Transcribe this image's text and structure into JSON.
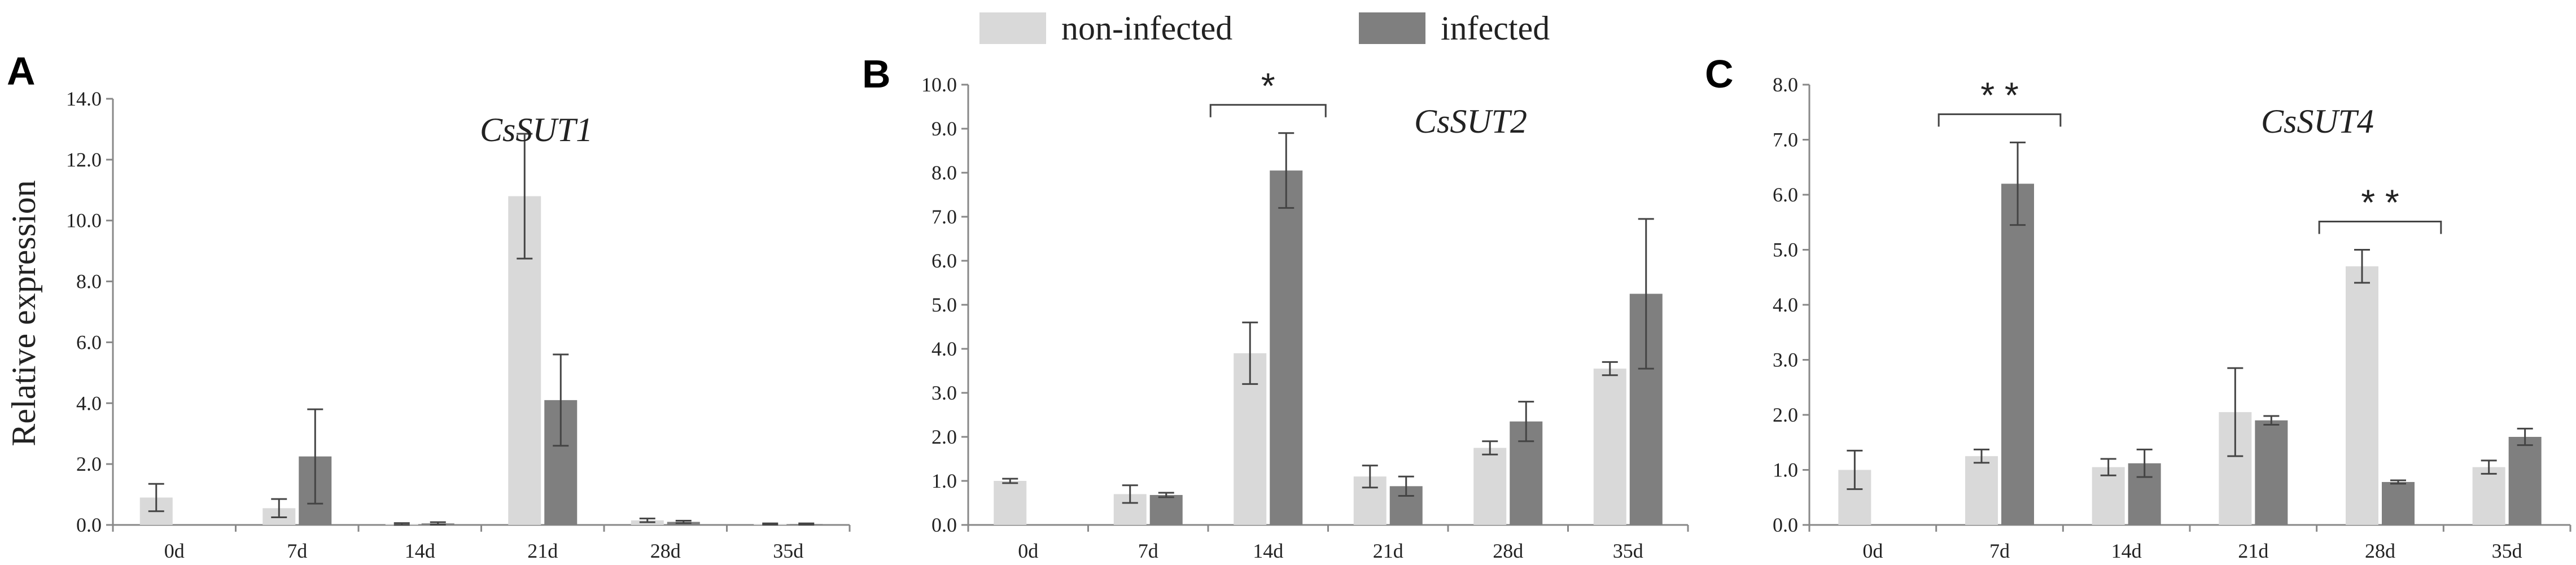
{
  "legend": {
    "items": [
      {
        "label": "non-infected",
        "color": "#d9d9d9"
      },
      {
        "label": "infected",
        "color": "#7f7f7f"
      }
    ]
  },
  "y_axis_label": "Relative expression",
  "chart_data": [
    {
      "panel": "A",
      "type": "bar",
      "title": "CsSUT1",
      "categories": [
        "0d",
        "7d",
        "14d",
        "21d",
        "28d",
        "35d"
      ],
      "ylim": [
        0,
        14
      ],
      "yticks": [
        "0.0",
        "2.0",
        "4.0",
        "6.0",
        "8.0",
        "10.0",
        "12.0",
        "14.0"
      ],
      "grid": false,
      "series": [
        {
          "name": "non-infected",
          "values": [
            0.9,
            0.55,
            0.03,
            10.8,
            0.15,
            0.03
          ],
          "errors": [
            0.45,
            0.3,
            0.03,
            2.05,
            0.06,
            0.02
          ]
        },
        {
          "name": "infected",
          "values": [
            0.0,
            2.25,
            0.05,
            4.1,
            0.1,
            0.03
          ],
          "errors": [
            0.0,
            1.55,
            0.04,
            1.5,
            0.04,
            0.02
          ]
        }
      ],
      "significance": []
    },
    {
      "panel": "B",
      "type": "bar",
      "title": "CsSUT2",
      "categories": [
        "0d",
        "7d",
        "14d",
        "21d",
        "28d",
        "35d"
      ],
      "ylim": [
        0,
        10
      ],
      "yticks": [
        "0.0",
        "1.0",
        "2.0",
        "3.0",
        "4.0",
        "5.0",
        "6.0",
        "7.0",
        "8.0",
        "9.0",
        "10.0"
      ],
      "grid": false,
      "series": [
        {
          "name": "non-infected",
          "values": [
            1.0,
            0.7,
            3.9,
            1.1,
            1.75,
            3.55
          ],
          "errors": [
            0.05,
            0.2,
            0.7,
            0.25,
            0.15,
            0.15
          ]
        },
        {
          "name": "infected",
          "values": [
            0.0,
            0.68,
            8.05,
            0.88,
            2.35,
            5.25
          ],
          "errors": [
            0.0,
            0.05,
            0.85,
            0.22,
            0.45,
            1.7
          ]
        }
      ],
      "significance": [
        {
          "category": "14d",
          "label": "*"
        }
      ]
    },
    {
      "panel": "C",
      "type": "bar",
      "title": "CsSUT4",
      "categories": [
        "0d",
        "7d",
        "14d",
        "21d",
        "28d",
        "35d"
      ],
      "ylim": [
        0,
        8
      ],
      "yticks": [
        "0.0",
        "1.0",
        "2.0",
        "3.0",
        "4.0",
        "5.0",
        "6.0",
        "7.0",
        "8.0"
      ],
      "grid": false,
      "series": [
        {
          "name": "non-infected",
          "values": [
            1.0,
            1.25,
            1.05,
            2.05,
            4.7,
            1.05
          ],
          "errors": [
            0.35,
            0.12,
            0.15,
            0.8,
            0.3,
            0.12
          ]
        },
        {
          "name": "infected",
          "values": [
            0.0,
            6.2,
            1.12,
            1.9,
            0.78,
            1.6
          ],
          "errors": [
            0.0,
            0.75,
            0.25,
            0.08,
            0.03,
            0.15
          ]
        }
      ],
      "significance": [
        {
          "category": "7d",
          "label": "* *"
        },
        {
          "category": "28d",
          "label": "* *"
        }
      ]
    }
  ]
}
